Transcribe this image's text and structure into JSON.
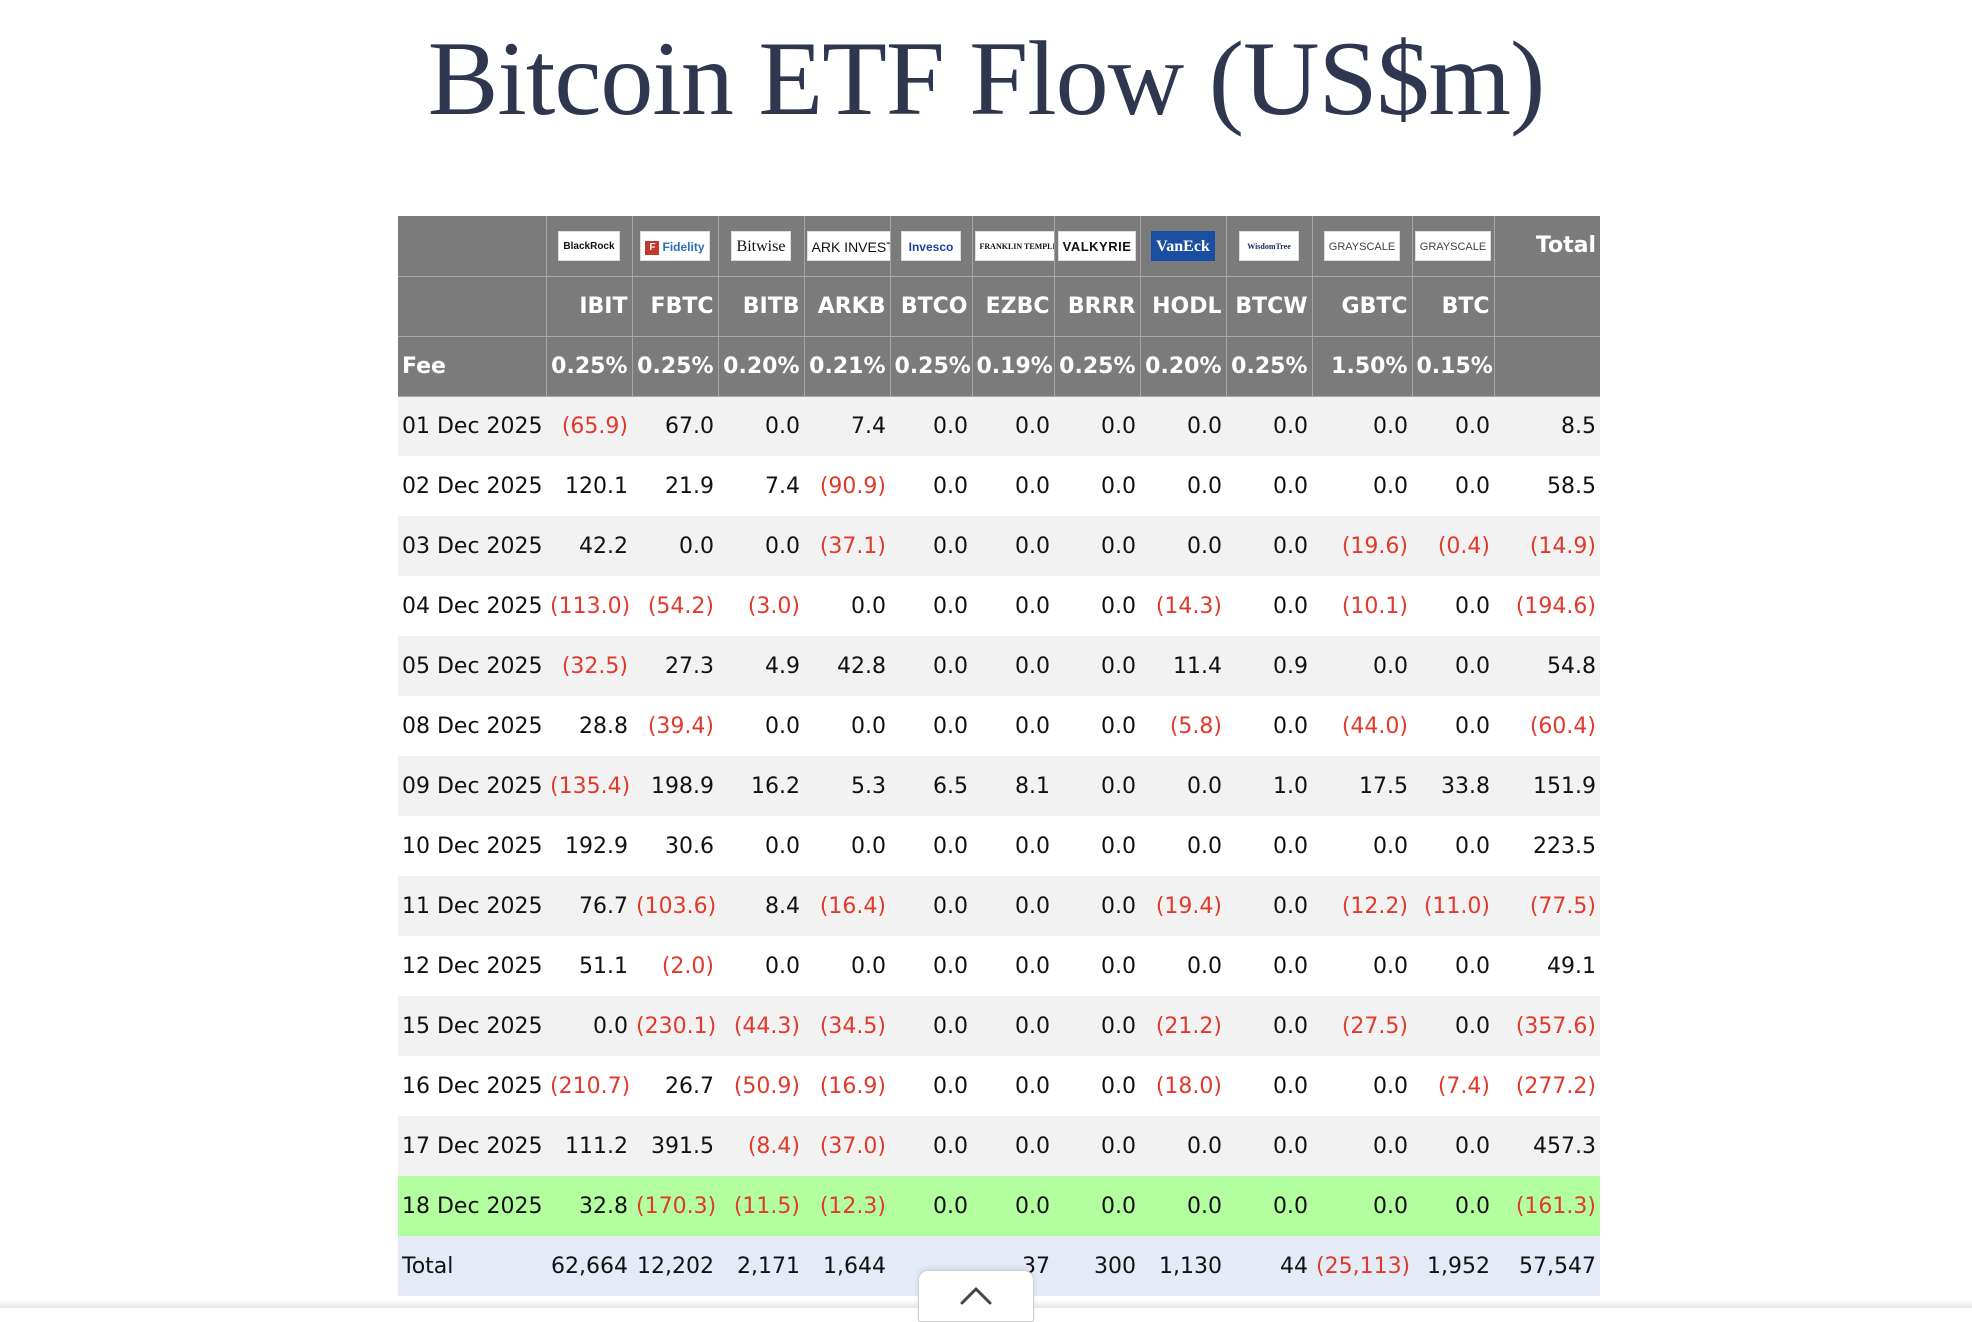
{
  "title": "Bitcoin ETF Flow (US$m)",
  "columns": [
    {
      "issuer": "BlackRock",
      "ticker": "IBIT",
      "fee": "0.25%"
    },
    {
      "issuer": "Fidelity",
      "ticker": "FBTC",
      "fee": "0.25%"
    },
    {
      "issuer": "Bitwise",
      "ticker": "BITB",
      "fee": "0.20%"
    },
    {
      "issuer": "ARK INVEST",
      "ticker": "ARKB",
      "fee": "0.21%"
    },
    {
      "issuer": "Invesco",
      "ticker": "BTCO",
      "fee": "0.25%"
    },
    {
      "issuer": "FRANKLIN TEMPLETON",
      "ticker": "EZBC",
      "fee": "0.19%"
    },
    {
      "issuer": "VALKYRIE",
      "ticker": "BRRR",
      "fee": "0.25%"
    },
    {
      "issuer": "VanEck",
      "ticker": "HODL",
      "fee": "0.20%"
    },
    {
      "issuer": "WisdomTree",
      "ticker": "BTCW",
      "fee": "0.25%"
    },
    {
      "issuer": "GRAYSCALE",
      "ticker": "GBTC",
      "fee": "1.50%"
    },
    {
      "issuer": "GRAYSCALE",
      "ticker": "BTC",
      "fee": "0.15%"
    }
  ],
  "total_header": "Total",
  "fee_label": "Fee",
  "colors": {
    "header_bg": "#7b7b7b",
    "negative": "#e03a2c",
    "highlight_row": "#b3ff9f",
    "total_row": "#e4eaf6"
  },
  "rows": [
    {
      "date": "01 Dec 2025",
      "values": [
        "(65.9)",
        "67.0",
        "0.0",
        "7.4",
        "0.0",
        "0.0",
        "0.0",
        "0.0",
        "0.0",
        "0.0",
        "0.0"
      ],
      "total": "8.5"
    },
    {
      "date": "02 Dec 2025",
      "values": [
        "120.1",
        "21.9",
        "7.4",
        "(90.9)",
        "0.0",
        "0.0",
        "0.0",
        "0.0",
        "0.0",
        "0.0",
        "0.0"
      ],
      "total": "58.5"
    },
    {
      "date": "03 Dec 2025",
      "values": [
        "42.2",
        "0.0",
        "0.0",
        "(37.1)",
        "0.0",
        "0.0",
        "0.0",
        "0.0",
        "0.0",
        "(19.6)",
        "(0.4)"
      ],
      "total": "(14.9)"
    },
    {
      "date": "04 Dec 2025",
      "values": [
        "(113.0)",
        "(54.2)",
        "(3.0)",
        "0.0",
        "0.0",
        "0.0",
        "0.0",
        "(14.3)",
        "0.0",
        "(10.1)",
        "0.0"
      ],
      "total": "(194.6)"
    },
    {
      "date": "05 Dec 2025",
      "values": [
        "(32.5)",
        "27.3",
        "4.9",
        "42.8",
        "0.0",
        "0.0",
        "0.0",
        "11.4",
        "0.9",
        "0.0",
        "0.0"
      ],
      "total": "54.8"
    },
    {
      "date": "08 Dec 2025",
      "values": [
        "28.8",
        "(39.4)",
        "0.0",
        "0.0",
        "0.0",
        "0.0",
        "0.0",
        "(5.8)",
        "0.0",
        "(44.0)",
        "0.0"
      ],
      "total": "(60.4)"
    },
    {
      "date": "09 Dec 2025",
      "values": [
        "(135.4)",
        "198.9",
        "16.2",
        "5.3",
        "6.5",
        "8.1",
        "0.0",
        "0.0",
        "1.0",
        "17.5",
        "33.8"
      ],
      "total": "151.9"
    },
    {
      "date": "10 Dec 2025",
      "values": [
        "192.9",
        "30.6",
        "0.0",
        "0.0",
        "0.0",
        "0.0",
        "0.0",
        "0.0",
        "0.0",
        "0.0",
        "0.0"
      ],
      "total": "223.5"
    },
    {
      "date": "11 Dec 2025",
      "values": [
        "76.7",
        "(103.6)",
        "8.4",
        "(16.4)",
        "0.0",
        "0.0",
        "0.0",
        "(19.4)",
        "0.0",
        "(12.2)",
        "(11.0)"
      ],
      "total": "(77.5)"
    },
    {
      "date": "12 Dec 2025",
      "values": [
        "51.1",
        "(2.0)",
        "0.0",
        "0.0",
        "0.0",
        "0.0",
        "0.0",
        "0.0",
        "0.0",
        "0.0",
        "0.0"
      ],
      "total": "49.1"
    },
    {
      "date": "15 Dec 2025",
      "values": [
        "0.0",
        "(230.1)",
        "(44.3)",
        "(34.5)",
        "0.0",
        "0.0",
        "0.0",
        "(21.2)",
        "0.0",
        "(27.5)",
        "0.0"
      ],
      "total": "(357.6)"
    },
    {
      "date": "16 Dec 2025",
      "values": [
        "(210.7)",
        "26.7",
        "(50.9)",
        "(16.9)",
        "0.0",
        "0.0",
        "0.0",
        "(18.0)",
        "0.0",
        "0.0",
        "(7.4)"
      ],
      "total": "(277.2)"
    },
    {
      "date": "17 Dec 2025",
      "values": [
        "111.2",
        "391.5",
        "(8.4)",
        "(37.0)",
        "0.0",
        "0.0",
        "0.0",
        "0.0",
        "0.0",
        "0.0",
        "0.0"
      ],
      "total": "457.3"
    },
    {
      "date": "18 Dec 2025",
      "values": [
        "32.8",
        "(170.3)",
        "(11.5)",
        "(12.3)",
        "0.0",
        "0.0",
        "0.0",
        "0.0",
        "0.0",
        "0.0",
        "0.0"
      ],
      "total": "(161.3)",
      "highlight": true
    }
  ],
  "total_row": {
    "label": "Total",
    "values": [
      "62,664",
      "12,202",
      "2,171",
      "1,644",
      "",
      "",
      "300",
      "1,130",
      "44",
      "(25,113)",
      "1,952"
    ],
    "total": "57,547",
    "partial_visible": {
      "BTCO": "…",
      "EZBC": "37"
    }
  }
}
